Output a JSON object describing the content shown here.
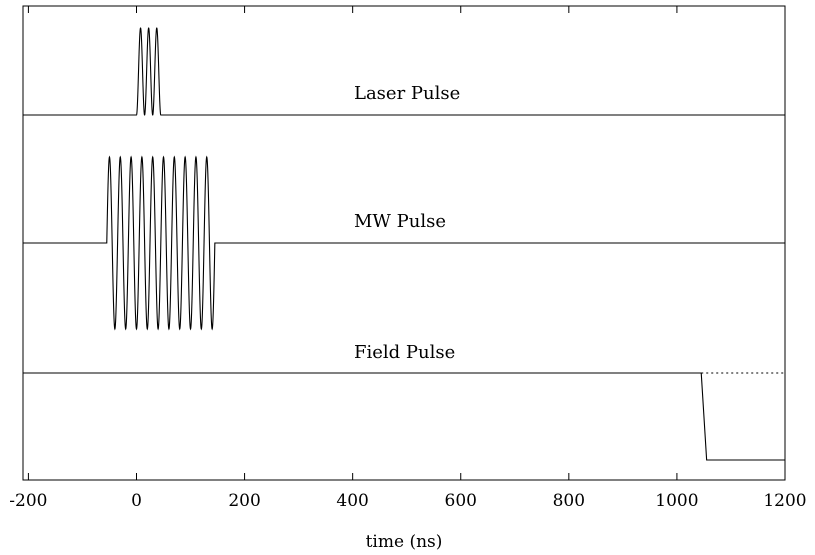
{
  "chart_data": {
    "type": "line",
    "xlabel": "time (ns)",
    "xlim": [
      -210,
      1200
    ],
    "xticks": [
      -200,
      0,
      200,
      400,
      600,
      800,
      1000,
      1200
    ],
    "xtick_labels": [
      "-200",
      "0",
      "200",
      "400",
      "600",
      "800",
      "1000",
      "1200"
    ],
    "grid": false,
    "series": [
      {
        "name": "Laser Pulse",
        "baseline_level": 0,
        "oscillation": {
          "start": 0,
          "end": 45,
          "cycles": 3,
          "amplitude": 1
        }
      },
      {
        "name": "MW Pulse",
        "baseline_level": 0,
        "oscillation": {
          "start": -55,
          "end": 145,
          "cycles": 10,
          "amplitude": 1
        }
      },
      {
        "name": "Field Pulse",
        "high_level": 1,
        "low_level": 0,
        "step_start": 1045,
        "step_end": 1055,
        "dotted_continuation_level": 1
      }
    ]
  }
}
